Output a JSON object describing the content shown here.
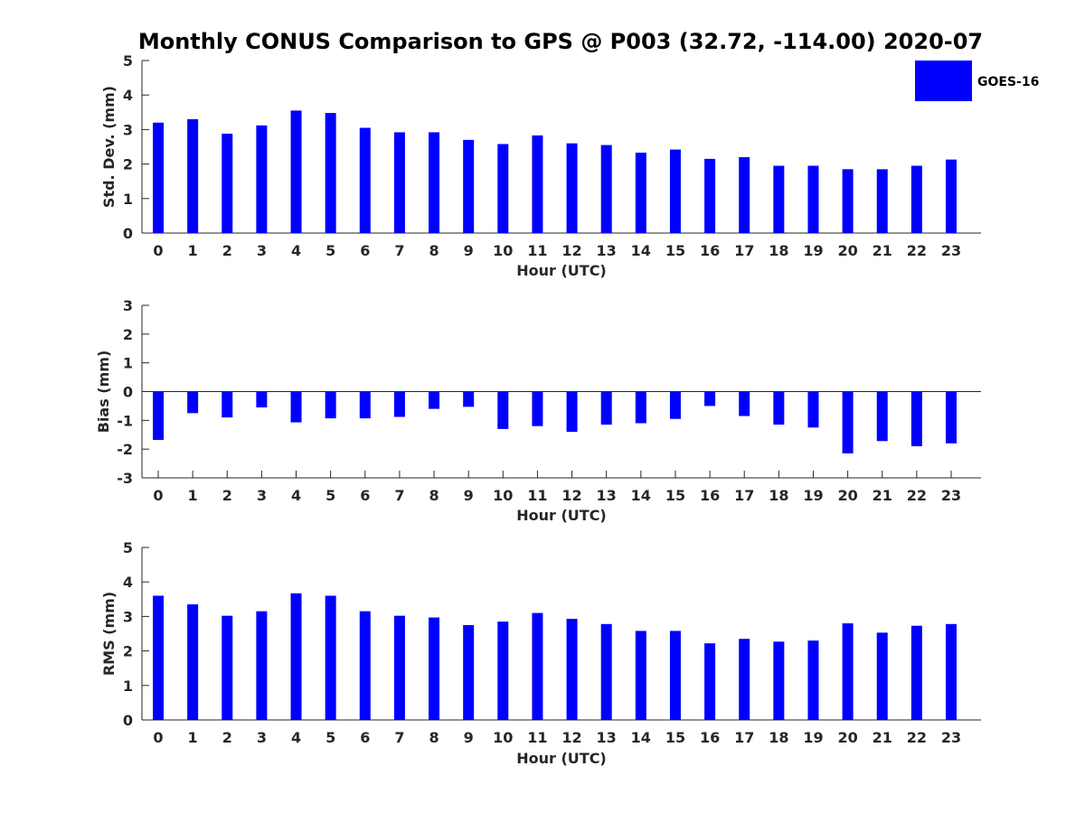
{
  "figure": {
    "title": "Monthly CONUS Comparison to GPS @ P003 (32.72, -114.00) 2020-07",
    "legend_label": "GOES-16",
    "bar_color": "#0000ff"
  },
  "chart_data": [
    {
      "type": "bar",
      "title": "Monthly CONUS Comparison to GPS @ P003 (32.72, -114.00) 2020-07",
      "xlabel": "Hour (UTC)",
      "ylabel": "Std. Dev. (mm)",
      "ylim": [
        0,
        5
      ],
      "yticks": [
        0,
        1,
        2,
        3,
        4,
        5
      ],
      "categories": [
        0,
        1,
        2,
        3,
        4,
        5,
        6,
        7,
        8,
        9,
        10,
        11,
        12,
        13,
        14,
        15,
        16,
        17,
        18,
        19,
        20,
        21,
        22,
        23
      ],
      "series": [
        {
          "name": "GOES-16",
          "values": [
            3.2,
            3.3,
            2.88,
            3.12,
            3.55,
            3.48,
            3.05,
            2.92,
            2.92,
            2.7,
            2.58,
            2.83,
            2.6,
            2.55,
            2.33,
            2.42,
            2.15,
            2.2,
            1.95,
            1.95,
            1.85,
            1.85,
            1.95,
            2.13
          ]
        }
      ],
      "legend": {
        "entries": [
          "GOES-16"
        ],
        "location": "top-right"
      }
    },
    {
      "type": "bar",
      "xlabel": "Hour (UTC)",
      "ylabel": "Bias (mm)",
      "ylim": [
        -3,
        3
      ],
      "yticks": [
        -3,
        -2,
        -1,
        0,
        1,
        2,
        3
      ],
      "categories": [
        0,
        1,
        2,
        3,
        4,
        5,
        6,
        7,
        8,
        9,
        10,
        11,
        12,
        13,
        14,
        15,
        16,
        17,
        18,
        19,
        20,
        21,
        22,
        23
      ],
      "series": [
        {
          "name": "GOES-16",
          "values": [
            -1.68,
            -0.75,
            -0.9,
            -0.55,
            -1.07,
            -0.93,
            -0.93,
            -0.88,
            -0.6,
            -0.53,
            -1.3,
            -1.2,
            -1.4,
            -1.15,
            -1.1,
            -0.95,
            -0.5,
            -0.85,
            -1.15,
            -1.25,
            -2.15,
            -1.72,
            -1.9,
            -1.8
          ]
        }
      ]
    },
    {
      "type": "bar",
      "xlabel": "Hour (UTC)",
      "ylabel": "RMS (mm)",
      "ylim": [
        0,
        5
      ],
      "yticks": [
        0,
        1,
        2,
        3,
        4,
        5
      ],
      "categories": [
        0,
        1,
        2,
        3,
        4,
        5,
        6,
        7,
        8,
        9,
        10,
        11,
        12,
        13,
        14,
        15,
        16,
        17,
        18,
        19,
        20,
        21,
        22,
        23
      ],
      "series": [
        {
          "name": "GOES-16",
          "values": [
            3.6,
            3.35,
            3.02,
            3.15,
            3.67,
            3.6,
            3.15,
            3.02,
            2.97,
            2.75,
            2.85,
            3.1,
            2.93,
            2.78,
            2.58,
            2.58,
            2.22,
            2.35,
            2.27,
            2.3,
            2.8,
            2.53,
            2.73,
            2.78
          ]
        }
      ]
    }
  ]
}
